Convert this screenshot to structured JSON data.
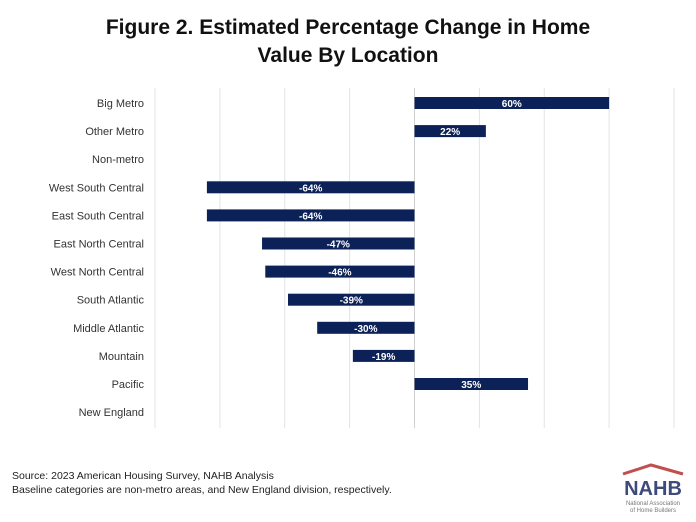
{
  "chart_data": {
    "type": "bar",
    "orientation": "horizontal",
    "title": "Figure 2. Estimated Percentage Change in  Home Value By Location",
    "title_lines": [
      "Figure 2. Estimated Percentage Change in  Home",
      "Value By Location"
    ],
    "categories": [
      "Big Metro",
      "Other Metro",
      "Non-metro",
      "West South Central",
      "East South Central",
      "East North Central",
      "West North Central",
      "South Atlantic",
      "Middle Atlantic",
      "Mountain",
      "Pacific",
      "New England"
    ],
    "values": [
      60,
      22,
      0,
      -64,
      -64,
      -47,
      -46,
      -39,
      -30,
      -19,
      35,
      0
    ],
    "data_labels": [
      "60%",
      "22%",
      "",
      "-64%",
      "-64%",
      "-47%",
      "-46%",
      "-39%",
      "-30%",
      "-19%",
      "35%",
      ""
    ],
    "xlim": [
      -80,
      80
    ],
    "grid_step": 20,
    "grid": true,
    "bar_color": "#0c2157",
    "xlabel": "",
    "ylabel": ""
  },
  "footer": {
    "source": "Source: 2023 American Housing Survey, NAHB Analysis",
    "note": "Baseline categories are non-metro areas, and New England division, respectively."
  },
  "logo": {
    "text": "NAHB",
    "subtext": "National Association of Home Builders",
    "colors": {
      "text": "#3d4a7a",
      "roof": "#c0504d"
    }
  }
}
